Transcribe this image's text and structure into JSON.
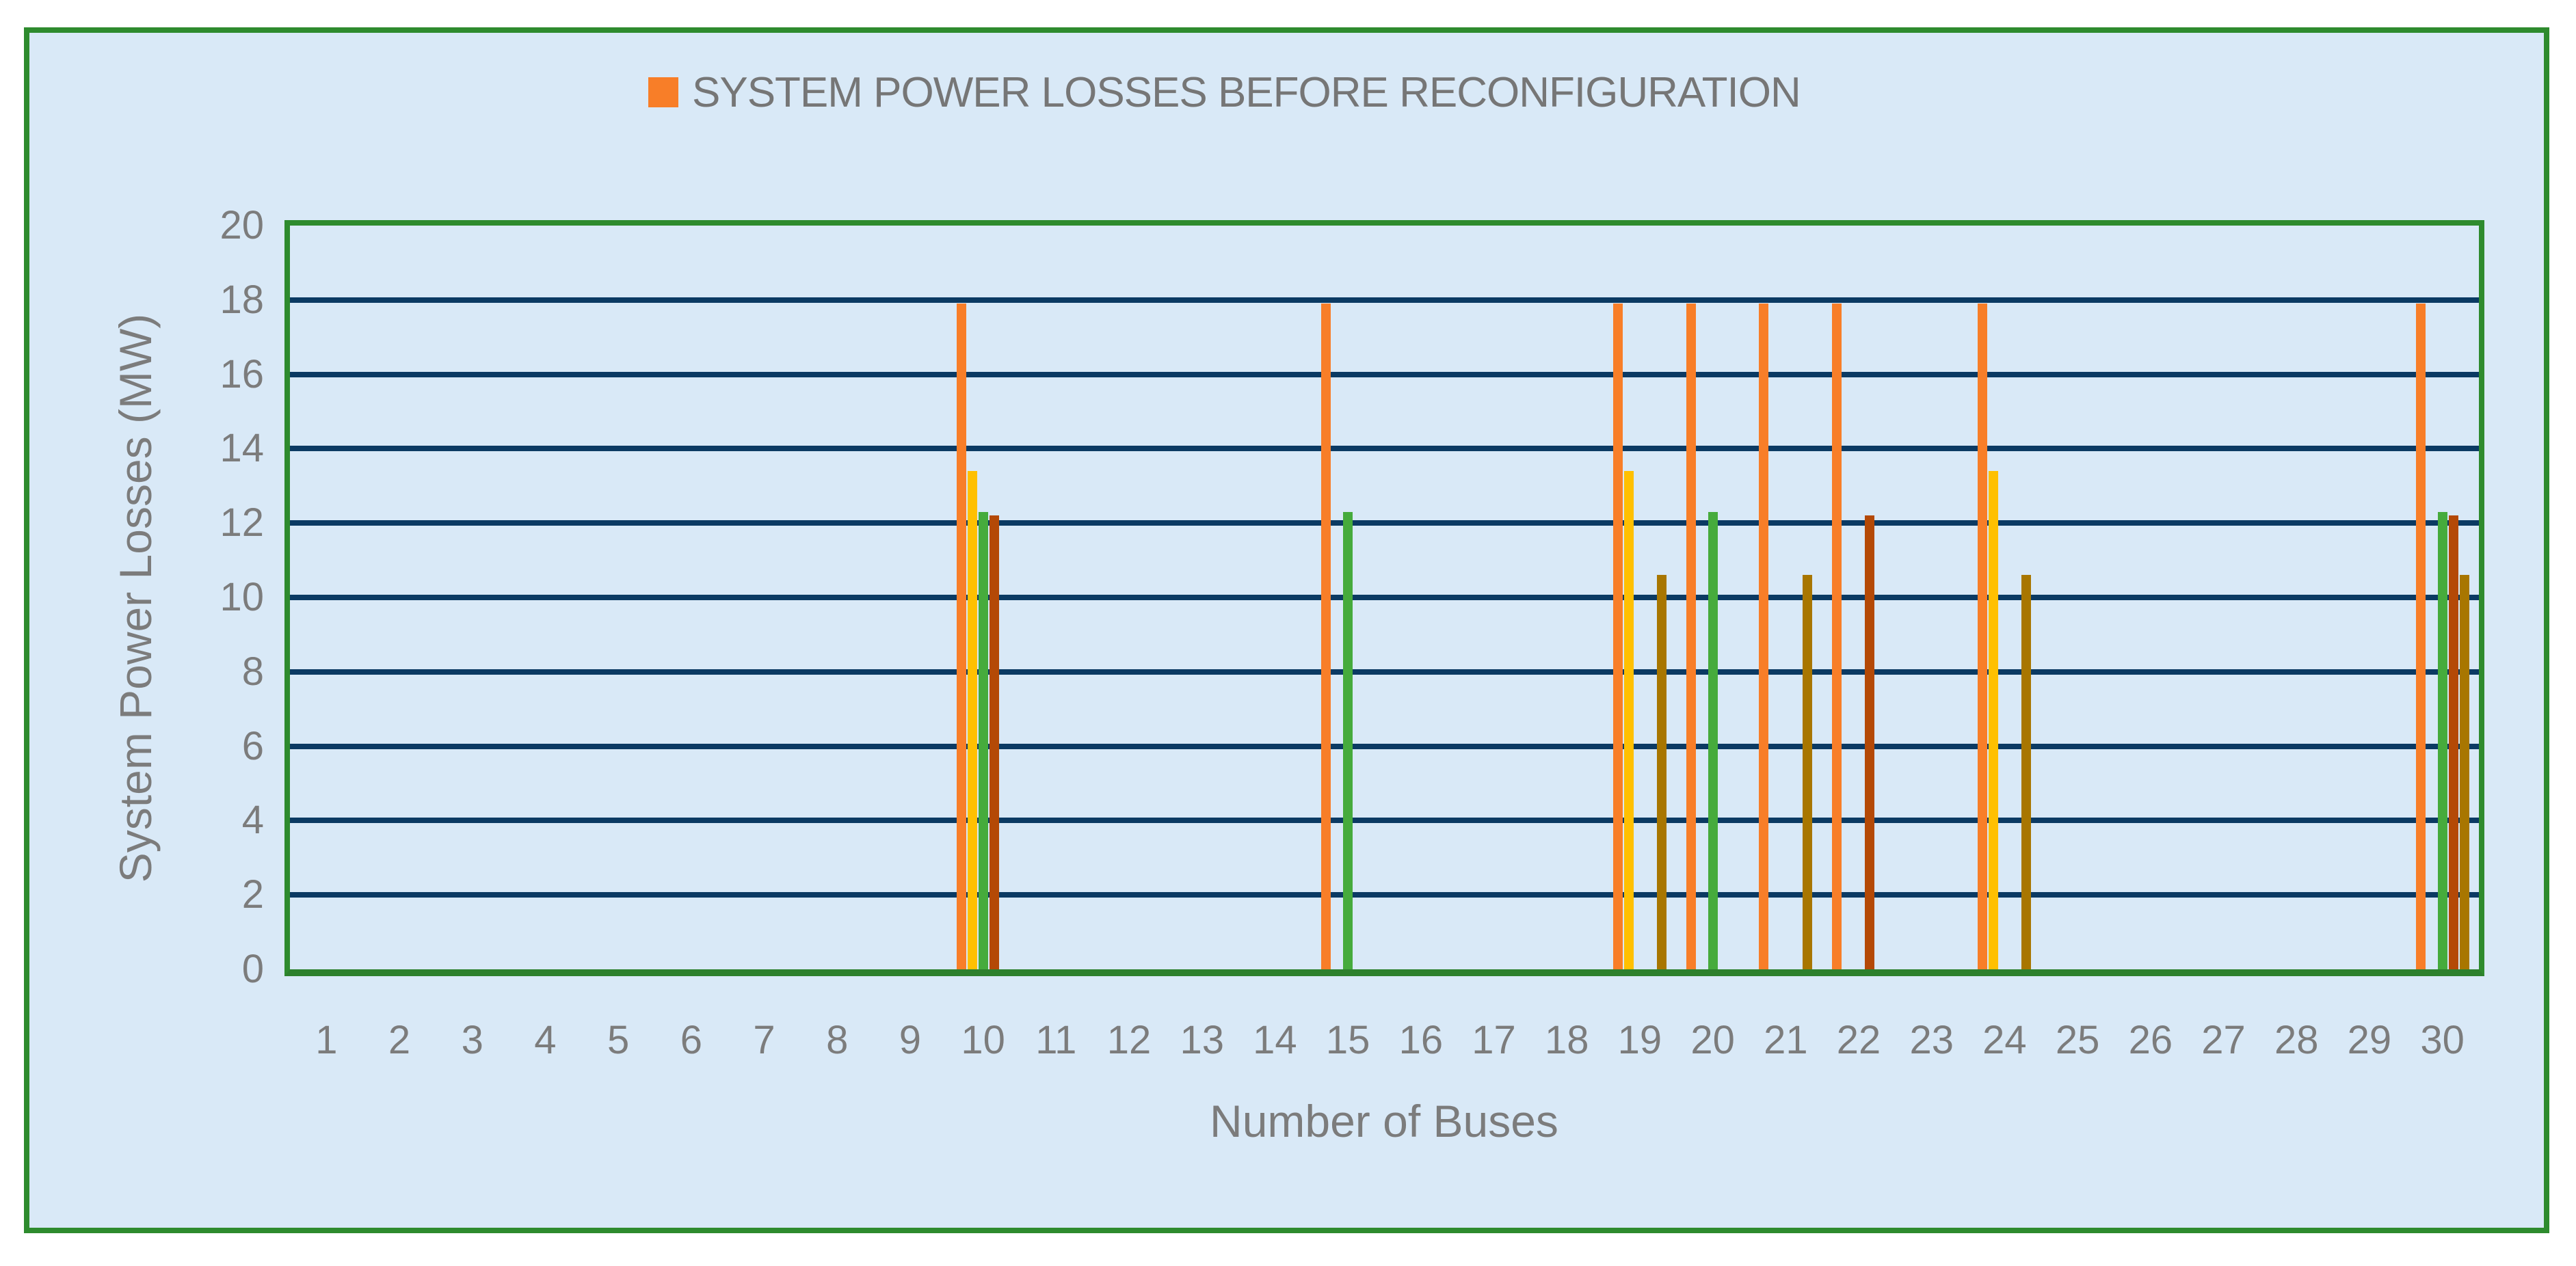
{
  "legend": {
    "label": "SYSTEM POWER LOSSES BEFORE RECONFIGURATION",
    "marker_color": "#F87E28"
  },
  "x_axis": {
    "title": "Number of Buses"
  },
  "y_axis": {
    "title": "System Power Losses (MW)",
    "ticks": [
      0,
      2,
      4,
      6,
      8,
      10,
      12,
      14,
      16,
      18,
      20
    ]
  },
  "colors": {
    "background": "#D9E9F7",
    "frame_border": "#2E8B2E",
    "plot_border": "#2E8B2E",
    "axis_line": "#2D802D",
    "gridline": "#0B3A63",
    "tick_text": "#7C7C7C",
    "legend_text": "#767676"
  },
  "chart_data": {
    "type": "bar",
    "legend_label": "SYSTEM POWER LOSSES BEFORE RECONFIGURATION",
    "xlabel": "Number of Buses",
    "ylabel": "System Power Losses (MW)",
    "ylim": [
      0,
      20
    ],
    "ytick_step": 2,
    "grid": true,
    "legend_position": "top",
    "categories": [
      1,
      2,
      3,
      4,
      5,
      6,
      7,
      8,
      9,
      10,
      11,
      12,
      13,
      14,
      15,
      16,
      17,
      18,
      19,
      20,
      21,
      22,
      23,
      24,
      25,
      26,
      27,
      28,
      29,
      30
    ],
    "series": [
      {
        "name": "orange",
        "color": "#F87E28",
        "values": [
          0,
          0,
          0,
          0,
          0,
          0,
          0,
          0,
          0,
          17.9,
          0,
          0,
          0,
          0,
          17.9,
          0,
          0,
          0,
          17.9,
          17.9,
          17.9,
          17.9,
          0,
          17.9,
          0,
          0,
          0,
          0,
          0,
          17.9
        ]
      },
      {
        "name": "yellow",
        "color": "#FFC001",
        "values": [
          0,
          0,
          0,
          0,
          0,
          0,
          0,
          0,
          0,
          13.4,
          0,
          0,
          0,
          0,
          0,
          0,
          0,
          0,
          13.4,
          0,
          0,
          0,
          0,
          13.4,
          0,
          0,
          0,
          0,
          0,
          0
        ]
      },
      {
        "name": "green",
        "color": "#46AB3C",
        "values": [
          0,
          0,
          0,
          0,
          0,
          0,
          0,
          0,
          0,
          12.3,
          0,
          0,
          0,
          0,
          12.3,
          0,
          0,
          0,
          0,
          12.3,
          0,
          0,
          0,
          0,
          0,
          0,
          0,
          0,
          0,
          12.3
        ]
      },
      {
        "name": "dark-red",
        "color": "#B44906",
        "values": [
          0,
          0,
          0,
          0,
          0,
          0,
          0,
          0,
          0,
          12.2,
          0,
          0,
          0,
          0,
          0,
          0,
          0,
          0,
          0,
          0,
          0,
          12.2,
          0,
          0,
          0,
          0,
          0,
          0,
          0,
          12.2
        ]
      },
      {
        "name": "olive",
        "color": "#A87600",
        "values": [
          0,
          0,
          0,
          0,
          0,
          0,
          0,
          0,
          0,
          0,
          0,
          0,
          0,
          0,
          0,
          0,
          0,
          0,
          10.6,
          0,
          10.6,
          0,
          0,
          10.6,
          0,
          0,
          0,
          0,
          0,
          10.6
        ]
      }
    ]
  }
}
